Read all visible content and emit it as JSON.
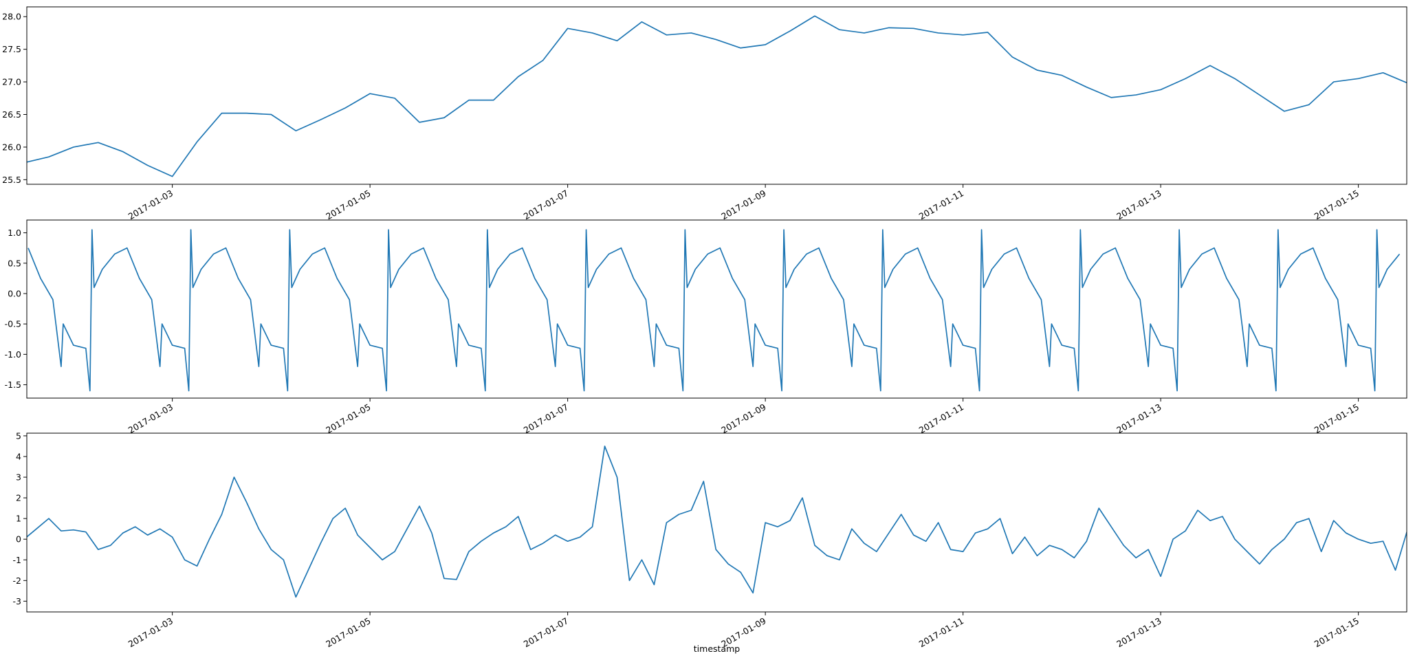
{
  "chart_data": [
    {
      "type": "line",
      "color": "#1f77b4",
      "xlim": [
        "2017-01-01T12:40",
        "2017-01-15T11:45"
      ],
      "xticks": [
        "2017-01-03",
        "2017-01-05",
        "2017-01-07",
        "2017-01-09",
        "2017-01-11",
        "2017-01-13",
        "2017-01-15"
      ],
      "ylim": [
        25.43,
        28.15
      ],
      "yticks": [
        25.5,
        {
          "value": 26,
          "label": "26.0"
        },
        26.5,
        {
          "value": 27,
          "label": "27.0"
        },
        27.5,
        {
          "value": 28,
          "label": "28.0"
        }
      ],
      "x": [
        "2017-01-01T12:00",
        "2017-01-01T18:00",
        "2017-01-02T00:00",
        "2017-01-02T06:00",
        "2017-01-02T12:00",
        "2017-01-02T18:00",
        "2017-01-03T00:00",
        "2017-01-03T06:00",
        "2017-01-03T12:00",
        "2017-01-03T18:00",
        "2017-01-04T00:00",
        "2017-01-04T06:00",
        "2017-01-04T12:00",
        "2017-01-04T18:00",
        "2017-01-05T00:00",
        "2017-01-05T06:00",
        "2017-01-05T12:00",
        "2017-01-05T18:00",
        "2017-01-06T00:00",
        "2017-01-06T06:00",
        "2017-01-06T12:00",
        "2017-01-06T18:00",
        "2017-01-07T00:00",
        "2017-01-07T06:00",
        "2017-01-07T12:00",
        "2017-01-07T18:00",
        "2017-01-08T00:00",
        "2017-01-08T06:00",
        "2017-01-08T12:00",
        "2017-01-08T18:00",
        "2017-01-09T00:00",
        "2017-01-09T06:00",
        "2017-01-09T12:00",
        "2017-01-09T18:00",
        "2017-01-10T00:00",
        "2017-01-10T06:00",
        "2017-01-10T12:00",
        "2017-01-10T18:00",
        "2017-01-11T00:00",
        "2017-01-11T06:00",
        "2017-01-11T12:00",
        "2017-01-11T18:00",
        "2017-01-12T00:00",
        "2017-01-12T06:00",
        "2017-01-12T12:00",
        "2017-01-12T18:00",
        "2017-01-13T00:00",
        "2017-01-13T06:00",
        "2017-01-13T12:00",
        "2017-01-13T18:00",
        "2017-01-14T00:00",
        "2017-01-14T06:00",
        "2017-01-14T12:00",
        "2017-01-14T18:00",
        "2017-01-15T00:00",
        "2017-01-15T06:00",
        "2017-01-15T12:00"
      ],
      "values": [
        25.76,
        25.85,
        26.0,
        26.07,
        25.93,
        25.72,
        25.55,
        26.08,
        26.52,
        26.52,
        26.5,
        26.25,
        26.42,
        26.6,
        26.82,
        26.75,
        26.38,
        26.45,
        26.72,
        26.72,
        27.08,
        27.33,
        27.82,
        27.75,
        27.63,
        27.92,
        27.72,
        27.75,
        27.65,
        27.52,
        27.57,
        27.78,
        28.01,
        27.8,
        27.75,
        27.83,
        27.82,
        27.75,
        27.72,
        27.76,
        27.38,
        27.18,
        27.1,
        26.92,
        26.76,
        26.8,
        26.88,
        27.05,
        27.25,
        27.05,
        26.8,
        26.55,
        26.65,
        27.0,
        27.05,
        27.14,
        26.98
      ]
    },
    {
      "type": "line",
      "color": "#1f77b4",
      "xlim": [
        "2017-01-01T12:40",
        "2017-01-15T11:45"
      ],
      "xticks": [
        "2017-01-03",
        "2017-01-05",
        "2017-01-07",
        "2017-01-09",
        "2017-01-11",
        "2017-01-13",
        "2017-01-15"
      ],
      "ylim": [
        -1.72,
        1.21
      ],
      "yticks": [
        {
          "value": -1.5,
          "label": "-1.5"
        },
        {
          "value": -1,
          "label": "-1.0"
        },
        -0.5,
        {
          "value": 0,
          "label": "0.0"
        },
        0.5,
        {
          "value": 1,
          "label": "1.0"
        }
      ],
      "x": [
        "2017-01-01T13:00",
        "2017-01-01T16:00",
        "2017-01-01T19:00",
        "2017-01-01T21:00",
        "2017-01-01T21:30",
        "2017-01-02T00:00",
        "2017-01-02T03:00",
        "2017-01-02T04:00",
        "2017-01-02T04:30",
        "2017-01-02T05:00",
        "2017-01-02T07:00",
        "2017-01-02T10:00",
        "2017-01-02T13:00",
        "2017-01-02T16:00",
        "2017-01-02T19:00",
        "2017-01-02T21:00",
        "2017-01-02T21:30",
        "2017-01-03T00:00",
        "2017-01-03T03:00",
        "2017-01-03T04:00",
        "2017-01-03T04:30",
        "2017-01-03T05:00",
        "2017-01-03T07:00",
        "2017-01-03T10:00",
        "2017-01-03T13:00",
        "2017-01-03T16:00",
        "2017-01-03T19:00",
        "2017-01-03T21:00",
        "2017-01-03T21:30",
        "2017-01-04T00:00",
        "2017-01-04T03:00",
        "2017-01-04T04:00",
        "2017-01-04T04:30",
        "2017-01-04T05:00",
        "2017-01-04T07:00",
        "2017-01-04T10:00",
        "2017-01-04T13:00",
        "2017-01-04T16:00",
        "2017-01-04T19:00",
        "2017-01-04T21:00",
        "2017-01-04T21:30",
        "2017-01-05T00:00",
        "2017-01-05T03:00",
        "2017-01-05T04:00",
        "2017-01-05T04:30",
        "2017-01-05T05:00",
        "2017-01-05T07:00",
        "2017-01-05T10:00",
        "2017-01-05T13:00",
        "2017-01-05T16:00",
        "2017-01-05T19:00",
        "2017-01-05T21:00",
        "2017-01-05T21:30",
        "2017-01-06T00:00",
        "2017-01-06T03:00",
        "2017-01-06T04:00",
        "2017-01-06T04:30",
        "2017-01-06T05:00",
        "2017-01-06T07:00",
        "2017-01-06T10:00",
        "2017-01-06T13:00",
        "2017-01-06T16:00",
        "2017-01-06T19:00",
        "2017-01-06T21:00",
        "2017-01-06T21:30",
        "2017-01-07T00:00",
        "2017-01-07T03:00",
        "2017-01-07T04:00",
        "2017-01-07T04:30",
        "2017-01-07T05:00",
        "2017-01-07T07:00",
        "2017-01-07T10:00",
        "2017-01-07T13:00",
        "2017-01-07T16:00",
        "2017-01-07T19:00",
        "2017-01-07T21:00",
        "2017-01-07T21:30",
        "2017-01-08T00:00",
        "2017-01-08T03:00",
        "2017-01-08T04:00",
        "2017-01-08T04:30",
        "2017-01-08T05:00",
        "2017-01-08T07:00",
        "2017-01-08T10:00",
        "2017-01-08T13:00",
        "2017-01-08T16:00",
        "2017-01-08T19:00",
        "2017-01-08T21:00",
        "2017-01-08T21:30",
        "2017-01-09T00:00",
        "2017-01-09T03:00",
        "2017-01-09T04:00",
        "2017-01-09T04:30",
        "2017-01-09T05:00",
        "2017-01-09T07:00",
        "2017-01-09T10:00",
        "2017-01-09T13:00",
        "2017-01-09T16:00",
        "2017-01-09T19:00",
        "2017-01-09T21:00",
        "2017-01-09T21:30",
        "2017-01-10T00:00",
        "2017-01-10T03:00",
        "2017-01-10T04:00",
        "2017-01-10T04:30",
        "2017-01-10T05:00",
        "2017-01-10T07:00",
        "2017-01-10T10:00",
        "2017-01-10T13:00",
        "2017-01-10T16:00",
        "2017-01-10T19:00",
        "2017-01-10T21:00",
        "2017-01-10T21:30",
        "2017-01-11T00:00",
        "2017-01-11T03:00",
        "2017-01-11T04:00",
        "2017-01-11T04:30",
        "2017-01-11T05:00",
        "2017-01-11T07:00",
        "2017-01-11T10:00",
        "2017-01-11T13:00",
        "2017-01-11T16:00",
        "2017-01-11T19:00",
        "2017-01-11T21:00",
        "2017-01-11T21:30",
        "2017-01-12T00:00",
        "2017-01-12T03:00",
        "2017-01-12T04:00",
        "2017-01-12T04:30",
        "2017-01-12T05:00",
        "2017-01-12T07:00",
        "2017-01-12T10:00",
        "2017-01-12T13:00",
        "2017-01-12T16:00",
        "2017-01-12T19:00",
        "2017-01-12T21:00",
        "2017-01-12T21:30",
        "2017-01-13T00:00",
        "2017-01-13T03:00",
        "2017-01-13T04:00",
        "2017-01-13T04:30",
        "2017-01-13T05:00",
        "2017-01-13T07:00",
        "2017-01-13T10:00",
        "2017-01-13T13:00",
        "2017-01-13T16:00",
        "2017-01-13T19:00",
        "2017-01-13T21:00",
        "2017-01-13T21:30",
        "2017-01-14T00:00",
        "2017-01-14T03:00",
        "2017-01-14T04:00",
        "2017-01-14T04:30",
        "2017-01-14T05:00",
        "2017-01-14T07:00",
        "2017-01-14T10:00",
        "2017-01-14T13:00",
        "2017-01-14T16:00",
        "2017-01-14T19:00",
        "2017-01-14T21:00",
        "2017-01-14T21:30",
        "2017-01-15T00:00",
        "2017-01-15T03:00",
        "2017-01-15T04:00",
        "2017-01-15T04:30",
        "2017-01-15T05:00",
        "2017-01-15T07:00",
        "2017-01-15T10:00"
      ],
      "values": [
        0.75,
        0.25,
        -0.1,
        -1.2,
        -0.5,
        -0.85,
        -0.9,
        -1.6,
        1.05,
        0.1,
        0.4,
        0.65,
        0.75,
        0.25,
        -0.1,
        -1.2,
        -0.5,
        -0.85,
        -0.9,
        -1.6,
        1.05,
        0.1,
        0.4,
        0.65,
        0.75,
        0.25,
        -0.1,
        -1.2,
        -0.5,
        -0.85,
        -0.9,
        -1.6,
        1.05,
        0.1,
        0.4,
        0.65,
        0.75,
        0.25,
        -0.1,
        -1.2,
        -0.5,
        -0.85,
        -0.9,
        -1.6,
        1.05,
        0.1,
        0.4,
        0.65,
        0.75,
        0.25,
        -0.1,
        -1.2,
        -0.5,
        -0.85,
        -0.9,
        -1.6,
        1.05,
        0.1,
        0.4,
        0.65,
        0.75,
        0.25,
        -0.1,
        -1.2,
        -0.5,
        -0.85,
        -0.9,
        -1.6,
        1.05,
        0.1,
        0.4,
        0.65,
        0.75,
        0.25,
        -0.1,
        -1.2,
        -0.5,
        -0.85,
        -0.9,
        -1.6,
        1.05,
        0.1,
        0.4,
        0.65,
        0.75,
        0.25,
        -0.1,
        -1.2,
        -0.5,
        -0.85,
        -0.9,
        -1.6,
        1.05,
        0.1,
        0.4,
        0.65,
        0.75,
        0.25,
        -0.1,
        -1.2,
        -0.5,
        -0.85,
        -0.9,
        -1.6,
        1.05,
        0.1,
        0.4,
        0.65,
        0.75,
        0.25,
        -0.1,
        -1.2,
        -0.5,
        -0.85,
        -0.9,
        -1.6,
        1.05,
        0.1,
        0.4,
        0.65,
        0.75,
        0.25,
        -0.1,
        -1.2,
        -0.5,
        -0.85,
        -0.9,
        -1.6,
        1.05,
        0.1,
        0.4,
        0.65,
        0.75,
        0.25,
        -0.1,
        -1.2,
        -0.5,
        -0.85,
        -0.9,
        -1.6,
        1.05,
        0.1,
        0.4,
        0.65,
        0.75,
        0.25,
        -0.1,
        -1.2,
        -0.5,
        -0.85,
        -0.9,
        -1.6,
        1.05,
        0.1,
        0.4,
        0.65,
        0.75,
        0.25,
        -0.1,
        -1.2,
        -0.5,
        -0.85,
        -0.9,
        -1.6,
        1.05,
        0.1,
        0.4,
        0.65
      ]
    },
    {
      "type": "line",
      "color": "#1f77b4",
      "xlabel": "timestamp",
      "xlim": [
        "2017-01-01T12:40",
        "2017-01-15T11:45"
      ],
      "xticks": [
        "2017-01-03",
        "2017-01-05",
        "2017-01-07",
        "2017-01-09",
        "2017-01-11",
        "2017-01-13",
        "2017-01-15"
      ],
      "ylim": [
        -3.52,
        5.13
      ],
      "yticks": [
        -3,
        -2,
        -1,
        0,
        1,
        2,
        3,
        4,
        5
      ],
      "x": [
        "2017-01-01T12:00",
        "2017-01-01T15:00",
        "2017-01-01T18:00",
        "2017-01-01T21:00",
        "2017-01-02T00:00",
        "2017-01-02T03:00",
        "2017-01-02T06:00",
        "2017-01-02T09:00",
        "2017-01-02T12:00",
        "2017-01-02T15:00",
        "2017-01-02T18:00",
        "2017-01-02T21:00",
        "2017-01-03T00:00",
        "2017-01-03T03:00",
        "2017-01-03T06:00",
        "2017-01-03T09:00",
        "2017-01-03T12:00",
        "2017-01-03T15:00",
        "2017-01-03T18:00",
        "2017-01-03T21:00",
        "2017-01-04T00:00",
        "2017-01-04T03:00",
        "2017-01-04T06:00",
        "2017-01-04T09:00",
        "2017-01-04T12:00",
        "2017-01-04T15:00",
        "2017-01-04T18:00",
        "2017-01-04T21:00",
        "2017-01-05T00:00",
        "2017-01-05T03:00",
        "2017-01-05T06:00",
        "2017-01-05T09:00",
        "2017-01-05T12:00",
        "2017-01-05T15:00",
        "2017-01-05T18:00",
        "2017-01-05T21:00",
        "2017-01-06T00:00",
        "2017-01-06T03:00",
        "2017-01-06T06:00",
        "2017-01-06T09:00",
        "2017-01-06T12:00",
        "2017-01-06T15:00",
        "2017-01-06T18:00",
        "2017-01-06T21:00",
        "2017-01-07T00:00",
        "2017-01-07T03:00",
        "2017-01-07T06:00",
        "2017-01-07T09:00",
        "2017-01-07T12:00",
        "2017-01-07T15:00",
        "2017-01-07T18:00",
        "2017-01-07T21:00",
        "2017-01-08T00:00",
        "2017-01-08T03:00",
        "2017-01-08T06:00",
        "2017-01-08T09:00",
        "2017-01-08T12:00",
        "2017-01-08T15:00",
        "2017-01-08T18:00",
        "2017-01-08T21:00",
        "2017-01-09T00:00",
        "2017-01-09T03:00",
        "2017-01-09T06:00",
        "2017-01-09T09:00",
        "2017-01-09T12:00",
        "2017-01-09T15:00",
        "2017-01-09T18:00",
        "2017-01-09T21:00",
        "2017-01-10T00:00",
        "2017-01-10T03:00",
        "2017-01-10T06:00",
        "2017-01-10T09:00",
        "2017-01-10T12:00",
        "2017-01-10T15:00",
        "2017-01-10T18:00",
        "2017-01-10T21:00",
        "2017-01-11T00:00",
        "2017-01-11T03:00",
        "2017-01-11T06:00",
        "2017-01-11T09:00",
        "2017-01-11T12:00",
        "2017-01-11T15:00",
        "2017-01-11T18:00",
        "2017-01-11T21:00",
        "2017-01-12T00:00",
        "2017-01-12T03:00",
        "2017-01-12T06:00",
        "2017-01-12T09:00",
        "2017-01-12T12:00",
        "2017-01-12T15:00",
        "2017-01-12T18:00",
        "2017-01-12T21:00",
        "2017-01-13T00:00",
        "2017-01-13T03:00",
        "2017-01-13T06:00",
        "2017-01-13T09:00",
        "2017-01-13T12:00",
        "2017-01-13T15:00",
        "2017-01-13T18:00",
        "2017-01-13T21:00",
        "2017-01-14T00:00",
        "2017-01-14T03:00",
        "2017-01-14T06:00",
        "2017-01-14T09:00",
        "2017-01-14T12:00",
        "2017-01-14T15:00",
        "2017-01-14T18:00",
        "2017-01-14T21:00",
        "2017-01-15T00:00",
        "2017-01-15T03:00",
        "2017-01-15T06:00",
        "2017-01-15T09:00",
        "2017-01-15T12:00"
      ],
      "values": [
        0.0,
        0.5,
        1.0,
        0.4,
        0.45,
        0.35,
        -0.5,
        -0.3,
        0.3,
        0.6,
        0.2,
        0.5,
        0.1,
        -1.0,
        -1.3,
        0.0,
        1.2,
        3.0,
        1.8,
        0.5,
        -0.5,
        -1.0,
        -2.8,
        -1.5,
        -0.2,
        1.0,
        1.5,
        0.2,
        -0.4,
        -1.0,
        -0.6,
        0.5,
        1.6,
        0.3,
        -1.9,
        -1.95,
        -0.6,
        -0.1,
        0.3,
        0.6,
        1.1,
        -0.5,
        -0.2,
        0.2,
        -0.1,
        0.1,
        0.6,
        4.5,
        3.0,
        -2.0,
        -1.0,
        -2.2,
        0.8,
        1.2,
        1.4,
        2.8,
        -0.5,
        -1.2,
        -1.6,
        -2.6,
        0.8,
        0.6,
        0.9,
        2.0,
        -0.3,
        -0.8,
        -1.0,
        0.5,
        -0.2,
        -0.6,
        0.3,
        1.2,
        0.2,
        -0.1,
        0.8,
        -0.5,
        -0.6,
        0.3,
        0.5,
        1.0,
        -0.7,
        0.1,
        -0.8,
        -0.3,
        -0.5,
        -0.9,
        -0.1,
        1.5,
        0.6,
        -0.3,
        -0.9,
        -0.5,
        -1.8,
        0.0,
        0.4,
        1.4,
        0.9,
        1.1,
        0.0,
        -0.6,
        -1.2,
        -0.5,
        0.0,
        0.8,
        1.0,
        -0.6,
        0.9,
        0.3,
        0.0,
        -0.2,
        -0.1,
        -1.5,
        0.5
      ]
    }
  ]
}
